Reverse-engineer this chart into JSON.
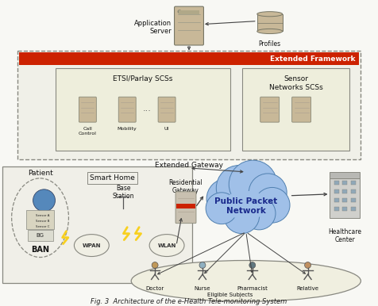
{
  "title": "Fig. 3  Architecture of the e-Health Tele-monitoring System",
  "fig_bg": "#ffffff",
  "app_server_label": "Application\nServer",
  "profiles_label": "Profiles",
  "extended_framework_label": "Extended Framework",
  "etsi_label": "ETSI/Parlay SCSs",
  "sensor_net_label": "Sensor\nNetworks SCSs",
  "extended_gateway_label": "Extended Gateway",
  "smart_home_label": "Smart Home",
  "patient_label": "Patient",
  "ban_label": "BAN",
  "wpan_label": "WPAN",
  "wlan_label": "WLAN",
  "base_station_label": "Base\nStation",
  "residential_gateway_label": "Residential\nGateway",
  "ppn_label": "Public Packet\nNetwork",
  "healthcare_label": "Healthcare\nCenter",
  "sub_labels": [
    "Call\nControl",
    "Mobility",
    "UI"
  ],
  "bottom_labels": [
    "Doctor",
    "Nurse",
    "Pharmacist",
    "Relative"
  ],
  "bottom_sublabel": "Eligible Subjects",
  "colors": {
    "bg": "#f8f8f4",
    "box_border": "#888880",
    "dashed_border": "#888880",
    "red_bar": "#cc2200",
    "etsi_fill": "#eeeedc",
    "sensor_fill": "#eeeedc",
    "smart_fill": "#f0efe8",
    "server_tan": "#c8b898",
    "cloud_blue": "#a0c0e8",
    "cloud_edge": "#5080b0",
    "building_gray": "#c8c8c8",
    "arrow": "#444444",
    "text": "#111111",
    "lightning": "#f8d020",
    "ppn_text": "#1a2a8c"
  }
}
